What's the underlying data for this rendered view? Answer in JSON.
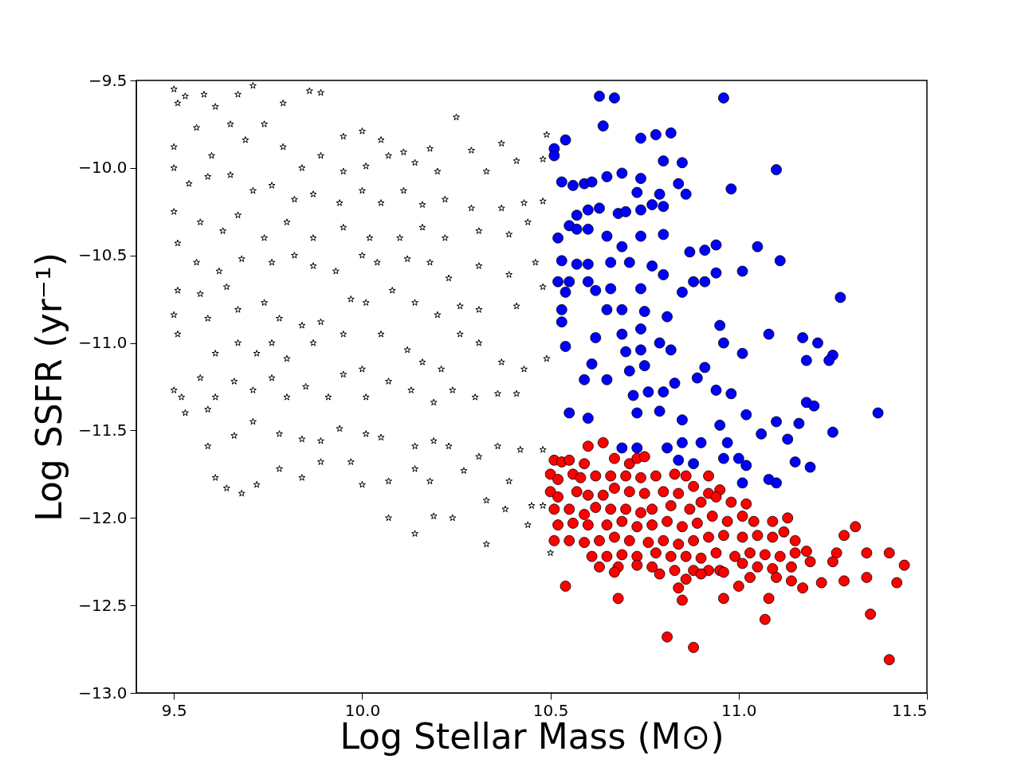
{
  "chart_data": {
    "type": "scatter",
    "xlabel": "Log Stellar Mass (M⊙)",
    "ylabel": "Log SSFR (yr⁻¹)",
    "xlim": [
      9.4,
      11.5
    ],
    "ylim": [
      -13.0,
      -9.5
    ],
    "xticks": [
      {
        "value": 9.5,
        "label": "9.5"
      },
      {
        "value": 10.0,
        "label": "10.0"
      },
      {
        "value": 10.5,
        "label": "10.5"
      },
      {
        "value": 11.0,
        "label": "11.0"
      },
      {
        "value": 11.5,
        "label": "11.5"
      }
    ],
    "yticks": [
      {
        "value": -13.0,
        "label": "−13.0"
      },
      {
        "value": -12.5,
        "label": "−12.5"
      },
      {
        "value": -12.0,
        "label": "−12.0"
      },
      {
        "value": -11.5,
        "label": "−11.5"
      },
      {
        "value": -11.0,
        "label": "−11.0"
      },
      {
        "value": -10.5,
        "label": "−10.5"
      },
      {
        "value": -10.0,
        "label": "−10.0"
      },
      {
        "value": -9.5,
        "label": "−9.5"
      }
    ],
    "grid": false,
    "series": [
      {
        "color": "#000000",
        "marker": "star",
        "x": [
          9.5,
          9.51,
          9.53,
          9.58,
          9.61,
          9.67,
          9.71,
          9.79,
          9.86,
          9.89,
          9.95,
          10.0,
          10.05,
          10.11,
          10.18,
          10.25,
          10.37,
          10.49,
          9.5,
          9.56,
          9.6,
          9.65,
          9.69,
          9.74,
          9.79,
          9.84,
          9.89,
          9.95,
          10.01,
          10.07,
          10.14,
          10.2,
          10.29,
          10.33,
          10.41,
          10.48,
          9.5,
          9.54,
          9.59,
          9.65,
          9.71,
          9.76,
          9.82,
          9.87,
          9.94,
          10.0,
          10.05,
          10.11,
          10.16,
          10.22,
          10.29,
          10.37,
          10.43,
          10.48,
          9.5,
          9.57,
          9.63,
          9.67,
          9.74,
          9.8,
          9.87,
          9.95,
          10.02,
          10.1,
          10.16,
          10.22,
          10.31,
          10.39,
          10.44,
          9.51,
          9.56,
          9.62,
          9.68,
          9.76,
          9.82,
          9.87,
          9.93,
          10.0,
          10.04,
          10.12,
          10.18,
          10.23,
          10.31,
          10.39,
          10.46,
          9.51,
          9.57,
          9.64,
          9.67,
          9.74,
          9.78,
          9.84,
          9.89,
          9.97,
          10.01,
          10.08,
          10.14,
          10.2,
          10.26,
          10.31,
          10.41,
          10.48,
          9.5,
          9.51,
          9.59,
          9.61,
          9.67,
          9.72,
          9.76,
          9.8,
          9.87,
          9.95,
          10.0,
          10.05,
          10.12,
          10.16,
          10.21,
          10.26,
          10.31,
          10.37,
          10.43,
          10.49,
          9.5,
          9.52,
          9.57,
          9.61,
          9.66,
          9.71,
          9.76,
          9.8,
          9.85,
          9.91,
          9.95,
          10.01,
          10.07,
          10.13,
          10.19,
          10.24,
          10.3,
          10.36,
          10.41,
          9.53,
          9.59,
          9.66,
          9.71,
          9.78,
          9.84,
          9.89,
          9.94,
          10.01,
          10.05,
          10.14,
          10.19,
          10.23,
          10.31,
          10.36,
          10.42,
          10.48,
          9.59,
          9.61,
          9.64,
          9.68,
          9.72,
          9.78,
          9.84,
          9.89,
          9.97,
          10.0,
          10.07,
          10.14,
          10.18,
          10.27,
          10.33,
          10.39,
          10.45,
          10.07,
          10.14,
          10.19,
          10.24,
          10.33,
          10.38,
          10.44,
          10.5,
          10.48
        ],
        "values": [
          -9.55,
          -9.63,
          -9.59,
          -9.58,
          -9.65,
          -9.58,
          -9.53,
          -9.63,
          -9.56,
          -9.57,
          -9.82,
          -9.79,
          -9.84,
          -9.91,
          -9.89,
          -9.71,
          -9.86,
          -9.81,
          -9.88,
          -9.77,
          -9.93,
          -9.75,
          -9.84,
          -9.75,
          -9.88,
          -10.0,
          -9.93,
          -10.02,
          -9.99,
          -9.93,
          -9.97,
          -10.02,
          -9.9,
          -10.02,
          -9.96,
          -9.95,
          -10.0,
          -10.09,
          -10.05,
          -10.04,
          -10.13,
          -10.1,
          -10.18,
          -10.15,
          -10.2,
          -10.13,
          -10.2,
          -10.13,
          -10.21,
          -10.18,
          -10.23,
          -10.23,
          -10.2,
          -10.19,
          -10.25,
          -10.31,
          -10.36,
          -10.27,
          -10.4,
          -10.31,
          -10.4,
          -10.34,
          -10.4,
          -10.4,
          -10.34,
          -10.4,
          -10.36,
          -10.38,
          -10.31,
          -10.43,
          -10.54,
          -10.59,
          -10.52,
          -10.54,
          -10.5,
          -10.56,
          -10.59,
          -10.5,
          -10.54,
          -10.52,
          -10.54,
          -10.63,
          -10.56,
          -10.61,
          -10.54,
          -10.7,
          -10.72,
          -10.68,
          -10.81,
          -10.77,
          -10.86,
          -10.9,
          -10.88,
          -10.75,
          -10.77,
          -10.7,
          -10.77,
          -10.84,
          -10.79,
          -10.81,
          -10.79,
          -10.68,
          -10.84,
          -10.95,
          -10.86,
          -11.06,
          -11.0,
          -11.06,
          -11.0,
          -11.09,
          -11.0,
          -10.95,
          -11.15,
          -10.95,
          -11.04,
          -11.11,
          -11.15,
          -10.95,
          -11.0,
          -11.11,
          -11.15,
          -11.09,
          -11.27,
          -11.31,
          -11.2,
          -11.31,
          -11.22,
          -11.27,
          -11.2,
          -11.31,
          -11.25,
          -11.31,
          -11.18,
          -11.31,
          -11.22,
          -11.27,
          -11.34,
          -11.27,
          -11.31,
          -11.29,
          -11.29,
          -11.4,
          -11.38,
          -11.53,
          -11.45,
          -11.52,
          -11.55,
          -11.56,
          -11.49,
          -11.52,
          -11.54,
          -11.59,
          -11.56,
          -11.59,
          -11.65,
          -11.59,
          -11.61,
          -11.61,
          -11.59,
          -11.77,
          -11.83,
          -11.86,
          -11.81,
          -11.72,
          -11.77,
          -11.68,
          -11.68,
          -11.81,
          -11.79,
          -11.72,
          -11.79,
          -11.73,
          -11.9,
          -11.79,
          -11.93,
          -12.0,
          -12.09,
          -11.99,
          -12.0,
          -12.15,
          -11.95,
          -12.04,
          -12.2,
          -11.93
        ]
      },
      {
        "color": "#0000ff",
        "marker": "circle",
        "x": [
          10.51,
          10.54,
          10.63,
          10.67,
          10.96,
          10.64,
          10.51,
          10.53,
          10.56,
          10.59,
          10.61,
          10.65,
          10.69,
          10.74,
          10.78,
          10.82,
          10.8,
          10.85,
          10.84,
          10.86,
          10.98,
          11.1,
          10.74,
          10.73,
          10.79,
          10.74,
          10.77,
          10.8,
          10.68,
          10.7,
          10.63,
          10.6,
          10.57,
          10.6,
          10.52,
          10.55,
          10.57,
          10.65,
          10.74,
          10.8,
          10.69,
          10.87,
          10.91,
          10.94,
          11.05,
          11.11,
          10.94,
          11.01,
          11.27,
          10.53,
          10.57,
          10.6,
          10.66,
          10.71,
          10.77,
          10.52,
          10.55,
          10.6,
          10.54,
          10.62,
          10.66,
          10.74,
          10.8,
          10.85,
          10.88,
          10.91,
          10.53,
          10.53,
          10.65,
          10.69,
          10.75,
          10.74,
          10.81,
          10.62,
          10.69,
          10.54,
          10.7,
          10.74,
          10.79,
          10.82,
          10.95,
          10.96,
          11.08,
          11.17,
          11.21,
          11.25,
          10.61,
          10.71,
          10.75,
          10.91,
          11.01,
          11.18,
          11.24,
          10.59,
          10.65,
          10.76,
          10.8,
          10.83,
          10.89,
          10.94,
          10.98,
          11.18,
          11.2,
          11.37,
          10.55,
          10.6,
          10.72,
          10.73,
          10.79,
          10.85,
          11.02,
          11.1,
          11.16,
          11.25,
          10.69,
          10.73,
          10.81,
          10.85,
          10.9,
          10.97,
          10.95,
          11.06,
          11.13,
          10.84,
          10.88,
          10.96,
          11.0,
          11.02,
          11.08,
          11.15,
          11.19,
          11.1,
          11.01
        ],
        "values": [
          -9.89,
          -9.84,
          -9.59,
          -9.6,
          -9.6,
          -9.76,
          -9.93,
          -10.08,
          -10.1,
          -10.09,
          -10.08,
          -10.05,
          -10.03,
          -9.83,
          -9.81,
          -9.8,
          -9.96,
          -9.97,
          -10.09,
          -10.15,
          -10.12,
          -10.01,
          -10.06,
          -10.14,
          -10.15,
          -10.24,
          -10.21,
          -10.22,
          -10.26,
          -10.25,
          -10.23,
          -10.24,
          -10.27,
          -10.35,
          -10.4,
          -10.33,
          -10.35,
          -10.39,
          -10.39,
          -10.38,
          -10.45,
          -10.48,
          -10.47,
          -10.44,
          -10.45,
          -10.53,
          -10.6,
          -10.59,
          -10.74,
          -10.53,
          -10.55,
          -10.55,
          -10.54,
          -10.54,
          -10.56,
          -10.65,
          -10.65,
          -10.65,
          -10.71,
          -10.7,
          -10.69,
          -10.69,
          -10.61,
          -10.71,
          -10.65,
          -10.65,
          -10.81,
          -10.88,
          -10.81,
          -10.81,
          -10.82,
          -10.92,
          -10.85,
          -10.97,
          -10.95,
          -11.02,
          -11.05,
          -11.04,
          -11.0,
          -11.04,
          -10.9,
          -11.0,
          -10.95,
          -10.97,
          -11.0,
          -11.07,
          -11.12,
          -11.16,
          -11.13,
          -11.14,
          -11.06,
          -11.1,
          -11.1,
          -11.21,
          -11.21,
          -11.28,
          -11.28,
          -11.23,
          -11.2,
          -11.27,
          -11.29,
          -11.34,
          -11.36,
          -11.4,
          -11.4,
          -11.43,
          -11.3,
          -11.4,
          -11.39,
          -11.44,
          -11.41,
          -11.45,
          -11.46,
          -11.51,
          -11.6,
          -11.6,
          -11.6,
          -11.57,
          -11.57,
          -11.57,
          -11.47,
          -11.52,
          -11.55,
          -11.67,
          -11.69,
          -11.66,
          -11.66,
          -11.7,
          -11.78,
          -11.68,
          -11.71,
          -11.8,
          -11.8
        ]
      },
      {
        "color": "#ff0000",
        "marker": "circle",
        "x": [
          10.51,
          10.53,
          10.55,
          10.59,
          10.6,
          10.64,
          10.67,
          10.71,
          10.73,
          10.75,
          10.5,
          10.52,
          10.56,
          10.58,
          10.62,
          10.66,
          10.7,
          10.74,
          10.78,
          10.83,
          10.86,
          10.92,
          10.5,
          10.52,
          10.57,
          10.6,
          10.64,
          10.67,
          10.71,
          10.75,
          10.8,
          10.84,
          10.88,
          10.92,
          10.95,
          10.51,
          10.55,
          10.59,
          10.62,
          10.66,
          10.7,
          10.74,
          10.77,
          10.82,
          10.87,
          10.9,
          10.94,
          10.98,
          11.02,
          10.52,
          10.56,
          10.6,
          10.65,
          10.69,
          10.73,
          10.77,
          10.81,
          10.85,
          10.89,
          10.93,
          10.97,
          11.01,
          11.04,
          11.09,
          11.13,
          10.51,
          10.55,
          10.59,
          10.63,
          10.67,
          10.71,
          10.76,
          10.8,
          10.84,
          10.88,
          10.92,
          10.96,
          11.01,
          11.05,
          11.09,
          11.12,
          11.15,
          11.28,
          11.31,
          10.61,
          10.65,
          10.69,
          10.73,
          10.78,
          10.82,
          10.86,
          10.9,
          10.94,
          10.99,
          11.03,
          11.07,
          11.11,
          11.15,
          11.18,
          11.26,
          11.34,
          11.4,
          10.63,
          10.68,
          10.73,
          10.77,
          10.83,
          10.88,
          10.92,
          10.95,
          11.01,
          11.05,
          11.09,
          11.14,
          11.19,
          11.25,
          11.44,
          10.67,
          10.79,
          10.86,
          10.9,
          10.96,
          11.03,
          11.1,
          11.14,
          11.22,
          11.28,
          11.34,
          11.42,
          10.54,
          10.84,
          11.0,
          11.17,
          10.68,
          10.85,
          10.96,
          11.08,
          11.35,
          11.07,
          10.81,
          10.88,
          11.4
        ],
        "values": [
          -11.67,
          -11.68,
          -11.67,
          -11.69,
          -11.59,
          -11.57,
          -11.66,
          -11.69,
          -11.66,
          -11.65,
          -11.75,
          -11.78,
          -11.75,
          -11.77,
          -11.76,
          -11.76,
          -11.76,
          -11.77,
          -11.76,
          -11.75,
          -11.76,
          -11.76,
          -11.85,
          -11.88,
          -11.85,
          -11.87,
          -11.87,
          -11.83,
          -11.85,
          -11.86,
          -11.85,
          -11.86,
          -11.82,
          -11.86,
          -11.84,
          -11.95,
          -11.95,
          -11.98,
          -11.94,
          -11.95,
          -11.95,
          -11.97,
          -11.95,
          -11.93,
          -11.95,
          -11.91,
          -11.88,
          -11.91,
          -11.92,
          -12.04,
          -12.03,
          -12.04,
          -12.04,
          -12.02,
          -12.05,
          -12.04,
          -12.02,
          -12.05,
          -12.03,
          -11.99,
          -12.02,
          -11.99,
          -12.02,
          -12.02,
          -12.0,
          -12.13,
          -12.13,
          -12.14,
          -12.13,
          -12.11,
          -12.13,
          -12.14,
          -12.13,
          -12.15,
          -12.13,
          -12.11,
          -12.1,
          -12.11,
          -12.1,
          -12.11,
          -12.08,
          -12.13,
          -12.1,
          -12.05,
          -12.22,
          -12.22,
          -12.21,
          -12.22,
          -12.2,
          -12.22,
          -12.22,
          -12.23,
          -12.2,
          -12.22,
          -12.2,
          -12.21,
          -12.22,
          -12.2,
          -12.19,
          -12.2,
          -12.2,
          -12.2,
          -12.28,
          -12.28,
          -12.27,
          -12.28,
          -12.3,
          -12.3,
          -12.3,
          -12.3,
          -12.26,
          -12.28,
          -12.29,
          -12.28,
          -12.25,
          -12.25,
          -12.27,
          -12.31,
          -12.32,
          -12.35,
          -12.32,
          -12.31,
          -12.34,
          -12.34,
          -12.36,
          -12.37,
          -12.36,
          -12.34,
          -12.37,
          -12.39,
          -12.4,
          -12.39,
          -12.4,
          -12.46,
          -12.47,
          -12.46,
          -12.46,
          -12.55,
          -12.58,
          -12.68,
          -12.74,
          -12.81
        ]
      }
    ]
  }
}
